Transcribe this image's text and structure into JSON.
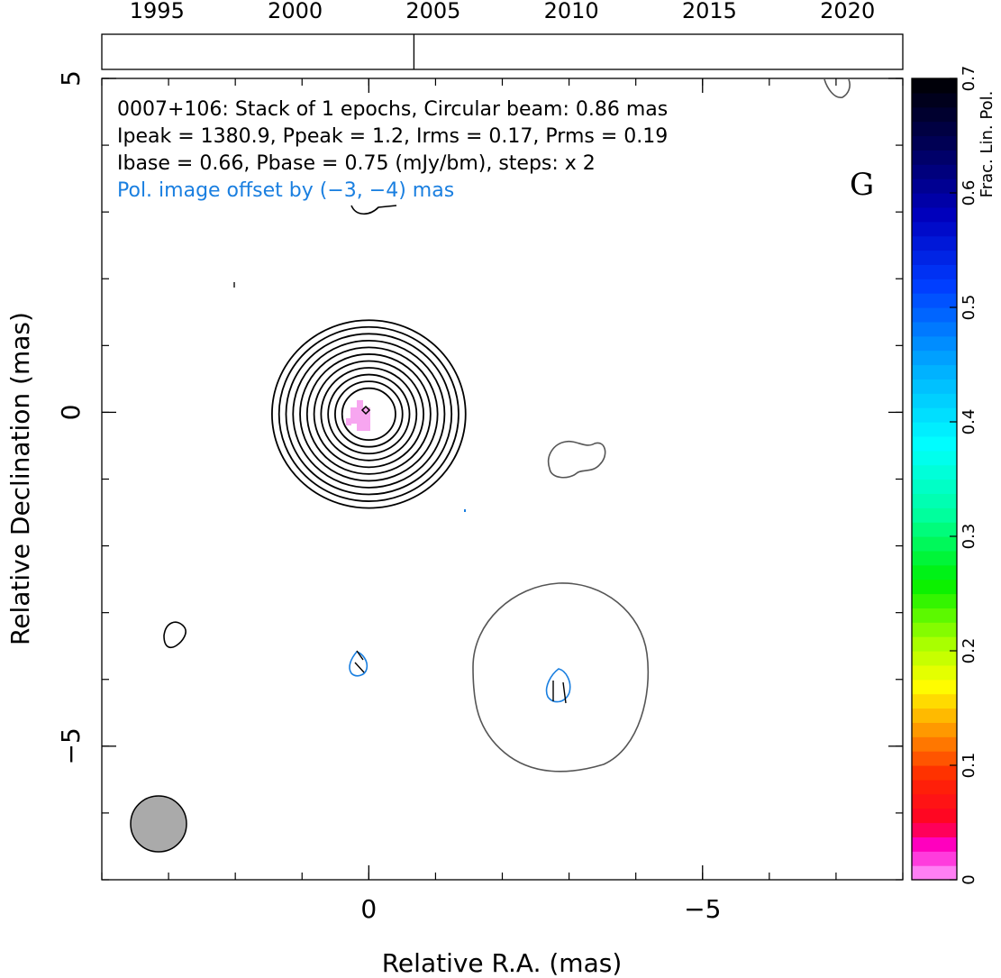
{
  "chart_data": {
    "type": "contour",
    "source": "0007+106",
    "header_lines": [
      "0007+106: Stack of 1 epochs, Circular beam: 0.86 mas",
      "Ipeak = 1380.9, Ppeak = 1.2, Irms = 0.17, Prms = 0.19",
      "Ibase = 0.66, Pbase = 0.75 (mJy/bm), steps: x 2"
    ],
    "offset_note": "Pol. image offset by (−3, −4) mas",
    "panel_label": "G",
    "xlabel": "Relative R.A. (mas)",
    "ylabel": "Relative Declination (mas)",
    "xlim": [
      4,
      -8
    ],
    "ylim": [
      -7,
      5
    ],
    "x_ticks": [
      {
        "v": 0,
        "label": "0"
      },
      {
        "v": -5,
        "label": "−5"
      }
    ],
    "y_ticks": [
      {
        "v": 5,
        "label": "5"
      },
      {
        "v": 0,
        "label": "0"
      },
      {
        "v": -5,
        "label": "−5"
      }
    ],
    "epoch_axis": {
      "range": [
        1993,
        2022
      ],
      "ticks": [
        {
          "v": 1995,
          "label": "1995"
        },
        {
          "v": 2000,
          "label": "2000"
        },
        {
          "v": 2005,
          "label": "2005"
        },
        {
          "v": 2010,
          "label": "2010"
        },
        {
          "v": 2015,
          "label": "2015"
        },
        {
          "v": 2020,
          "label": "2020"
        }
      ],
      "epochs": [
        2004.3
      ]
    },
    "colorbar": {
      "label": "Frac. Lin. Pol.",
      "range": [
        0,
        0.7
      ],
      "ticks": [
        {
          "v": 0,
          "label": "0"
        },
        {
          "v": 0.1,
          "label": "0.1"
        },
        {
          "v": 0.2,
          "label": "0.2"
        },
        {
          "v": 0.3,
          "label": "0.3"
        },
        {
          "v": 0.4,
          "label": "0.4"
        },
        {
          "v": 0.5,
          "label": "0.5"
        },
        {
          "v": 0.6,
          "label": "0.6"
        },
        {
          "v": 0.7,
          "label": "0.7"
        }
      ]
    },
    "stokes_i_contours": {
      "center": [
        0,
        0
      ],
      "levels": 11,
      "outer_radius": 1.45,
      "inner_radius": 0.4
    },
    "faint_features": [
      {
        "kind": "blob",
        "center": [
          -3.0,
          -0.75
        ],
        "color": "#555555"
      },
      {
        "kind": "blob",
        "center": [
          2.9,
          -3.4
        ],
        "color": "#000000"
      },
      {
        "kind": "ring",
        "center": [
          -3.0,
          -4.0
        ],
        "radius": 1.45,
        "color": "#555555"
      }
    ],
    "pol_contours": [
      {
        "center": [
          0.1,
          -3.85
        ],
        "color": "#1a7fe0"
      },
      {
        "center": [
          -2.9,
          -4.1
        ],
        "color": "#1a7fe0"
      }
    ],
    "beam": {
      "center": [
        3.1,
        -6.25
      ],
      "diameter": 0.86
    }
  }
}
